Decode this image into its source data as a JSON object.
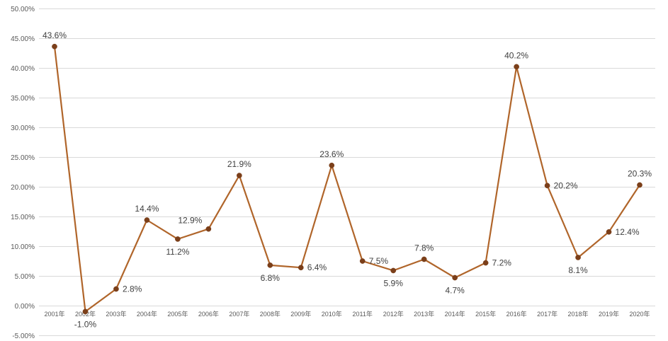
{
  "chart_data": {
    "type": "line",
    "categories": [
      "2001年",
      "2002年",
      "2003年",
      "2004年",
      "2005年",
      "2006年",
      "2007年",
      "2008年",
      "2009年",
      "2010年",
      "2011年",
      "2012年",
      "2013年",
      "2014年",
      "2015年",
      "2016年",
      "2017年",
      "2018年",
      "2019年",
      "2020年"
    ],
    "series": [
      {
        "values": [
          43.6,
          -1.0,
          2.8,
          14.4,
          11.2,
          12.9,
          21.9,
          6.8,
          6.4,
          23.6,
          7.5,
          5.9,
          7.8,
          4.7,
          7.2,
          40.2,
          20.2,
          8.1,
          12.4,
          20.3
        ],
        "labels": [
          "43.6%",
          "-1.0%",
          "2.8%",
          "14.4%",
          "11.2%",
          "12.9%",
          "21.9%",
          "6.8%",
          "6.4%",
          "23.6%",
          "7.5%",
          "5.9%",
          "7.8%",
          "4.7%",
          "7.2%",
          "40.2%",
          "20.2%",
          "8.1%",
          "12.4%",
          "20.3%"
        ],
        "label_positions": [
          "above",
          "below",
          "right",
          "above",
          "below",
          "left",
          "above",
          "below",
          "right",
          "above",
          "right",
          "below",
          "above",
          "below",
          "right",
          "above",
          "right",
          "below",
          "right",
          "above"
        ]
      }
    ],
    "ylim": [
      -5,
      50
    ],
    "ytick_values": [
      -5,
      0,
      5,
      10,
      15,
      20,
      25,
      30,
      35,
      40,
      45,
      50
    ],
    "ytick_labels": [
      "-5.00%",
      "0.00%",
      "5.00%",
      "10.00%",
      "15.00%",
      "20.00%",
      "25.00%",
      "30.00%",
      "35.00%",
      "40.00%",
      "45.00%",
      "50.00%"
    ],
    "grid": true,
    "legend": "none",
    "line_color": "#B0652A",
    "marker_color": "#7B3F1A"
  }
}
